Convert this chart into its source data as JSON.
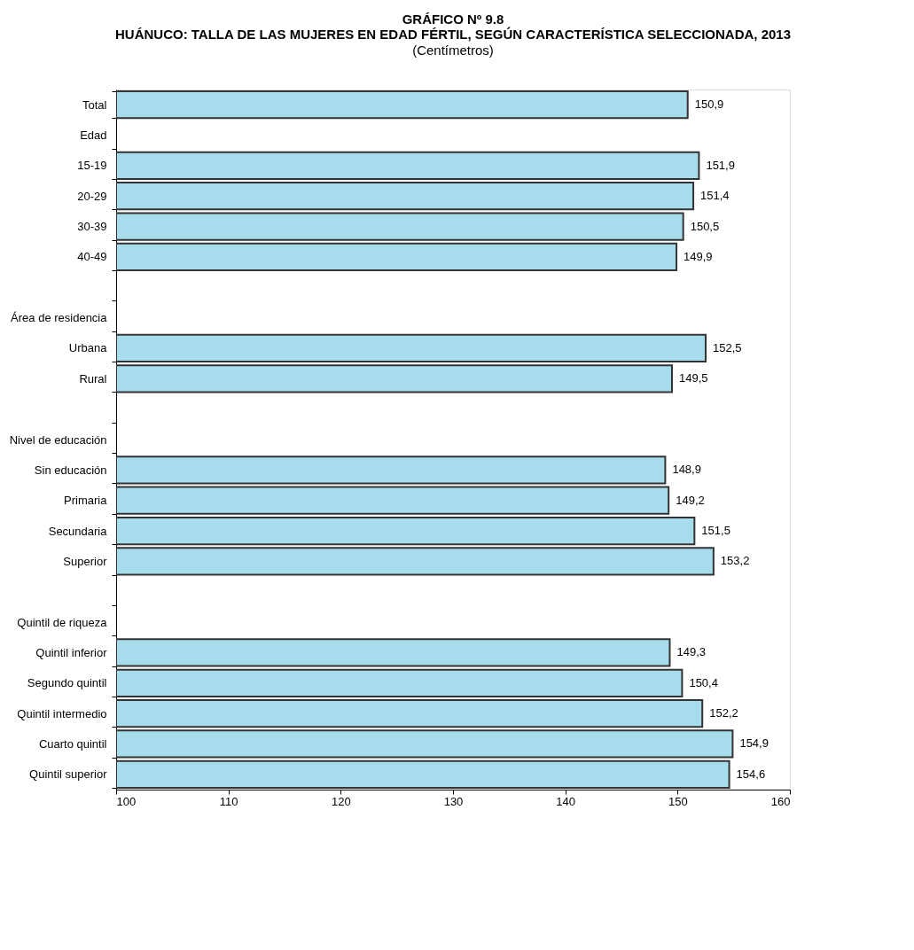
{
  "chart_data": {
    "type": "bar",
    "orientation": "horizontal",
    "title": "GRÁFICO Nº 9.8\nHUÁNUCO: TALLA DE LAS  MUJERES EN EDAD FÉRTIL, SEGÚN CARACTERÍSTICA SELECCIONADA, 2013",
    "subtitle": "(Centímetros)",
    "categories": [
      "Total",
      "Edad",
      "15-19",
      "20-29",
      "30-39",
      "40-49",
      null,
      "Área de residencia",
      "Urbana",
      "Rural",
      null,
      "Nivel de educación",
      "Sin educación",
      "Primaria",
      "Secundaria",
      "Superior",
      null,
      "Quintil de riqueza",
      "Quintil inferior",
      "Segundo quintil",
      "Quintil intermedio",
      "Cuarto quintil",
      "Quintil superior"
    ],
    "values": [
      150.9,
      null,
      151.9,
      151.4,
      150.5,
      149.9,
      null,
      null,
      152.5,
      149.5,
      null,
      null,
      148.9,
      149.2,
      151.5,
      153.2,
      null,
      null,
      149.3,
      150.4,
      152.2,
      154.9,
      154.6
    ],
    "value_labels": [
      "150,9",
      null,
      "151,9",
      "151,4",
      "150,5",
      "149,9",
      null,
      null,
      "152,5",
      "149,5",
      null,
      null,
      "148,9",
      "149,2",
      "151,5",
      "153,2",
      null,
      null,
      "149,3",
      "150,4",
      "152,2",
      "154,9",
      "154,6"
    ],
    "color": "#a6dcec",
    "xlim": [
      100,
      160
    ],
    "xticks": [
      100,
      110,
      120,
      130,
      140,
      150,
      160
    ],
    "grid": false
  }
}
